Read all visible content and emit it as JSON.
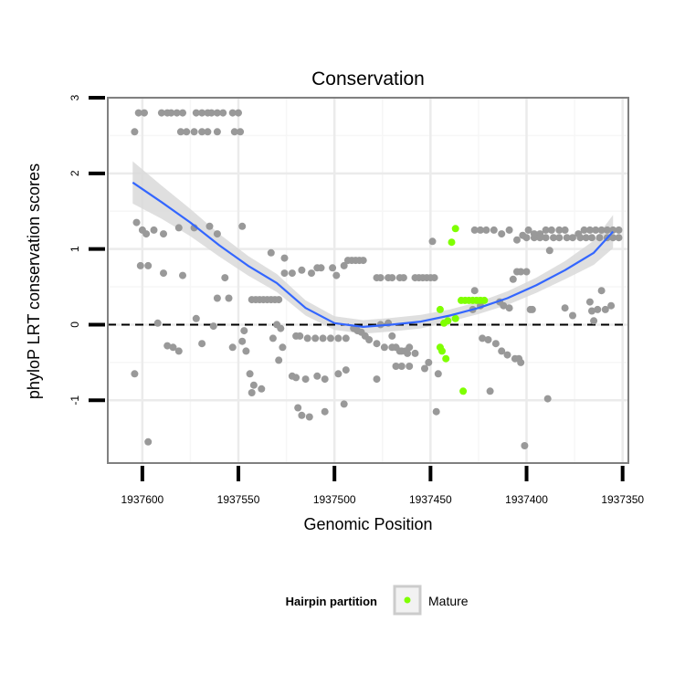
{
  "chart_data": {
    "type": "scatter",
    "title": "Conservation",
    "xlabel": "Genomic Position",
    "ylabel": "phyloP LRT conservation scores",
    "x_reversed": true,
    "xlim": [
      1937618,
      1937347
    ],
    "ylim": [
      -1.83,
      3.0
    ],
    "xticks": [
      1937600,
      1937550,
      1937500,
      1937450,
      1937400,
      1937350
    ],
    "xtick_labels": [
      "1937600",
      "1937550",
      "1937500",
      "1937450",
      "1937400",
      "1937350"
    ],
    "yticks": [
      3,
      2,
      1,
      0,
      -1
    ],
    "ytick_labels": [
      "3",
      "2",
      "1",
      "0",
      "-1"
    ],
    "reference_line": {
      "y": 0,
      "style": "dashed"
    },
    "colors": {
      "background": "#ffffff",
      "panel_border": "#808080",
      "grid_major": "#ebebeb",
      "grid_minor": "#f6f6f6",
      "points": "#999999",
      "mature": "#7fff00",
      "smooth_line": "#3366ff",
      "confidence_band": "#d9d9d9"
    },
    "legend": {
      "title": "Hairpin partition",
      "entries": [
        {
          "label": "Mature",
          "color": "#7fff00"
        }
      ],
      "position": "bottom"
    },
    "series": [
      {
        "name": "Other",
        "color": "#999999",
        "points": [
          [
            1937604,
            2.55
          ],
          [
            1937602,
            2.8
          ],
          [
            1937599,
            2.8
          ],
          [
            1937590,
            2.8
          ],
          [
            1937587,
            2.8
          ],
          [
            1937585,
            2.8
          ],
          [
            1937582,
            2.8
          ],
          [
            1937579,
            2.8
          ],
          [
            1937572,
            2.8
          ],
          [
            1937569,
            2.8
          ],
          [
            1937566,
            2.8
          ],
          [
            1937564,
            2.8
          ],
          [
            1937561,
            2.8
          ],
          [
            1937558,
            2.8
          ],
          [
            1937553,
            2.8
          ],
          [
            1937550,
            2.8
          ],
          [
            1937580,
            2.55
          ],
          [
            1937577,
            2.55
          ],
          [
            1937573,
            2.55
          ],
          [
            1937569,
            2.55
          ],
          [
            1937566,
            2.55
          ],
          [
            1937561,
            2.55
          ],
          [
            1937552,
            2.55
          ],
          [
            1937549,
            2.55
          ],
          [
            1937603,
            1.35
          ],
          [
            1937600,
            1.25
          ],
          [
            1937598,
            1.2
          ],
          [
            1937594,
            1.25
          ],
          [
            1937589,
            1.2
          ],
          [
            1937581,
            1.28
          ],
          [
            1937573,
            1.28
          ],
          [
            1937565,
            1.3
          ],
          [
            1937561,
            1.2
          ],
          [
            1937548,
            1.3
          ],
          [
            1937601,
            0.78
          ],
          [
            1937597,
            0.78
          ],
          [
            1937589,
            0.68
          ],
          [
            1937579,
            0.65
          ],
          [
            1937557,
            0.62
          ],
          [
            1937592,
            0.02
          ],
          [
            1937572,
            0.08
          ],
          [
            1937563,
            -0.02
          ],
          [
            1937561,
            0.35
          ],
          [
            1937555,
            0.35
          ],
          [
            1937547,
            -0.08
          ],
          [
            1937548,
            -0.22
          ],
          [
            1937587,
            -0.28
          ],
          [
            1937584,
            -0.3
          ],
          [
            1937581,
            -0.35
          ],
          [
            1937569,
            -0.25
          ],
          [
            1937553,
            -0.3
          ],
          [
            1937546,
            -0.35
          ],
          [
            1937604,
            -0.65
          ],
          [
            1937544,
            -0.65
          ],
          [
            1937542,
            -0.8
          ],
          [
            1937543,
            -0.9
          ],
          [
            1937538,
            -0.85
          ],
          [
            1937597,
            -1.55
          ],
          [
            1937543,
            0.33
          ],
          [
            1937541,
            0.33
          ],
          [
            1937539,
            0.33
          ],
          [
            1937537,
            0.33
          ],
          [
            1937535,
            0.33
          ],
          [
            1937533,
            0.33
          ],
          [
            1937531,
            0.33
          ],
          [
            1937529,
            0.33
          ],
          [
            1937533,
            0.95
          ],
          [
            1937526,
            0.68
          ],
          [
            1937522,
            0.68
          ],
          [
            1937517,
            0.72
          ],
          [
            1937512,
            0.68
          ],
          [
            1937509,
            0.75
          ],
          [
            1937507,
            0.75
          ],
          [
            1937501,
            0.75
          ],
          [
            1937499,
            0.65
          ],
          [
            1937495,
            0.78
          ],
          [
            1937493,
            0.85
          ],
          [
            1937491,
            0.85
          ],
          [
            1937489,
            0.85
          ],
          [
            1937487,
            0.85
          ],
          [
            1937485,
            0.85
          ],
          [
            1937526,
            0.88
          ],
          [
            1937530,
            0.0
          ],
          [
            1937528,
            -0.05
          ],
          [
            1937532,
            -0.18
          ],
          [
            1937527,
            -0.3
          ],
          [
            1937529,
            -0.47
          ],
          [
            1937520,
            -0.15
          ],
          [
            1937518,
            -0.15
          ],
          [
            1937514,
            -0.18
          ],
          [
            1937510,
            -0.18
          ],
          [
            1937506,
            -0.18
          ],
          [
            1937502,
            -0.18
          ],
          [
            1937498,
            -0.18
          ],
          [
            1937494,
            -0.18
          ],
          [
            1937490,
            -0.05
          ],
          [
            1937488,
            -0.08
          ],
          [
            1937486,
            -0.1
          ],
          [
            1937484,
            -0.15
          ],
          [
            1937482,
            -0.2
          ],
          [
            1937478,
            -0.25
          ],
          [
            1937474,
            -0.3
          ],
          [
            1937470,
            -0.3
          ],
          [
            1937466,
            -0.35
          ],
          [
            1937462,
            -0.38
          ],
          [
            1937458,
            -0.38
          ],
          [
            1937522,
            -0.68
          ],
          [
            1937520,
            -0.7
          ],
          [
            1937515,
            -0.72
          ],
          [
            1937509,
            -0.68
          ],
          [
            1937505,
            -0.72
          ],
          [
            1937498,
            -0.65
          ],
          [
            1937494,
            -0.6
          ],
          [
            1937478,
            -0.72
          ],
          [
            1937517,
            -1.2
          ],
          [
            1937513,
            -1.22
          ],
          [
            1937519,
            -1.1
          ],
          [
            1937505,
            -1.15
          ],
          [
            1937495,
            -1.05
          ],
          [
            1937478,
            0.62
          ],
          [
            1937476,
            0.62
          ],
          [
            1937472,
            0.62
          ],
          [
            1937470,
            0.62
          ],
          [
            1937466,
            0.62
          ],
          [
            1937464,
            0.62
          ],
          [
            1937458,
            0.62
          ],
          [
            1937456,
            0.62
          ],
          [
            1937454,
            0.62
          ],
          [
            1937452,
            0.62
          ],
          [
            1937450,
            0.62
          ],
          [
            1937448,
            0.62
          ],
          [
            1937476,
            0.0
          ],
          [
            1937472,
            0.02
          ],
          [
            1937470,
            -0.15
          ],
          [
            1937468,
            -0.3
          ],
          [
            1937465,
            -0.35
          ],
          [
            1937463,
            -0.35
          ],
          [
            1937461,
            -0.3
          ],
          [
            1937468,
            -0.55
          ],
          [
            1937465,
            -0.55
          ],
          [
            1937461,
            -0.55
          ],
          [
            1937453,
            -0.58
          ],
          [
            1937446,
            -0.65
          ],
          [
            1937451,
            -0.5
          ],
          [
            1937449,
            1.1
          ],
          [
            1937447,
            -1.15
          ],
          [
            1937428,
            0.2
          ],
          [
            1937427,
            0.45
          ],
          [
            1937424,
            0.25
          ],
          [
            1937423,
            -0.18
          ],
          [
            1937419,
            -0.88
          ],
          [
            1937420,
            -0.2
          ],
          [
            1937416,
            -0.25
          ],
          [
            1937413,
            -0.35
          ],
          [
            1937410,
            -0.4
          ],
          [
            1937406,
            -0.45
          ],
          [
            1937404,
            -0.45
          ],
          [
            1937403,
            -0.5
          ],
          [
            1937398,
            0.2
          ],
          [
            1937397,
            0.2
          ],
          [
            1937401,
            -1.6
          ],
          [
            1937412,
            0.25
          ],
          [
            1937414,
            0.3
          ],
          [
            1937409,
            0.22
          ],
          [
            1937405,
            0.7
          ],
          [
            1937403,
            0.7
          ],
          [
            1937400,
            0.7
          ],
          [
            1937407,
            0.6
          ],
          [
            1937427,
            1.25
          ],
          [
            1937424,
            1.25
          ],
          [
            1937421,
            1.25
          ],
          [
            1937417,
            1.25
          ],
          [
            1937413,
            1.2
          ],
          [
            1937409,
            1.25
          ],
          [
            1937405,
            1.12
          ],
          [
            1937402,
            1.18
          ],
          [
            1937399,
            1.25
          ],
          [
            1937396,
            1.2
          ],
          [
            1937393,
            1.2
          ],
          [
            1937390,
            1.25
          ],
          [
            1937387,
            1.25
          ],
          [
            1937383,
            1.25
          ],
          [
            1937380,
            1.25
          ],
          [
            1937373,
            1.2
          ],
          [
            1937370,
            1.25
          ],
          [
            1937367,
            1.25
          ],
          [
            1937364,
            1.25
          ],
          [
            1937361,
            1.25
          ],
          [
            1937358,
            1.25
          ],
          [
            1937355,
            1.25
          ],
          [
            1937352,
            1.25
          ],
          [
            1937400,
            1.15
          ],
          [
            1937396,
            1.15
          ],
          [
            1937393,
            1.15
          ],
          [
            1937390,
            1.15
          ],
          [
            1937386,
            1.15
          ],
          [
            1937383,
            1.15
          ],
          [
            1937379,
            1.15
          ],
          [
            1937376,
            1.15
          ],
          [
            1937372,
            1.15
          ],
          [
            1937369,
            1.15
          ],
          [
            1937366,
            1.15
          ],
          [
            1937362,
            1.15
          ],
          [
            1937358,
            1.15
          ],
          [
            1937355,
            1.15
          ],
          [
            1937352,
            1.15
          ],
          [
            1937367,
            0.3
          ],
          [
            1937363,
            0.2
          ],
          [
            1937361,
            0.45
          ],
          [
            1937359,
            0.2
          ],
          [
            1937356,
            0.25
          ],
          [
            1937380,
            0.22
          ],
          [
            1937376,
            0.12
          ],
          [
            1937366,
            0.18
          ],
          [
            1937365,
            0.05
          ],
          [
            1937388,
            0.98
          ],
          [
            1937389,
            -0.98
          ]
        ]
      },
      {
        "name": "Mature",
        "color": "#7fff00",
        "points": [
          [
            1937437,
            1.27
          ],
          [
            1937439,
            1.09
          ],
          [
            1937434,
            0.32
          ],
          [
            1937432,
            0.32
          ],
          [
            1937430,
            0.32
          ],
          [
            1937428,
            0.32
          ],
          [
            1937426,
            0.32
          ],
          [
            1937424,
            0.32
          ],
          [
            1937422,
            0.32
          ],
          [
            1937445,
            0.2
          ],
          [
            1937441,
            0.05
          ],
          [
            1937443,
            0.02
          ],
          [
            1937437,
            0.08
          ],
          [
            1937445,
            -0.3
          ],
          [
            1937444,
            -0.35
          ],
          [
            1937442,
            -0.45
          ],
          [
            1937433,
            -0.88
          ]
        ]
      }
    ],
    "smooth_fit": {
      "method": "loess",
      "x": [
        1937605,
        1937590,
        1937575,
        1937560,
        1937545,
        1937530,
        1937515,
        1937500,
        1937485,
        1937470,
        1937455,
        1937440,
        1937425,
        1937410,
        1937395,
        1937380,
        1937365,
        1937355
      ],
      "y": [
        1.88,
        1.62,
        1.35,
        1.05,
        0.78,
        0.55,
        0.22,
        0.02,
        -0.03,
        0.0,
        0.04,
        0.12,
        0.22,
        0.35,
        0.52,
        0.72,
        0.95,
        1.23
      ],
      "se": [
        0.28,
        0.22,
        0.18,
        0.15,
        0.13,
        0.12,
        0.1,
        0.09,
        0.09,
        0.09,
        0.09,
        0.08,
        0.08,
        0.09,
        0.1,
        0.12,
        0.16,
        0.22
      ]
    }
  }
}
